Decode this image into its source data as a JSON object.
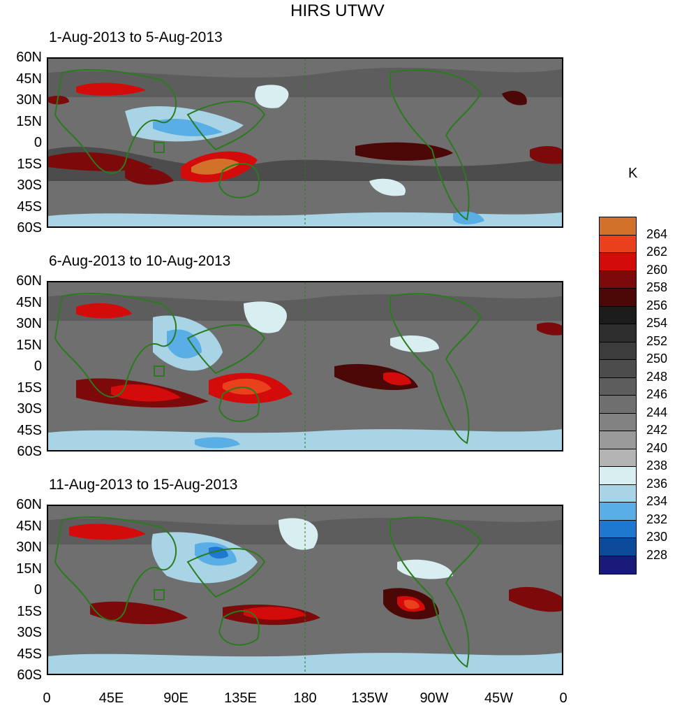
{
  "title": "HIRS UTWV",
  "panels": [
    {
      "subtitle": "1-Aug-2013 to 5-Aug-2013"
    },
    {
      "subtitle": "6-Aug-2013 to 10-Aug-2013"
    },
    {
      "subtitle": "11-Aug-2013 to 15-Aug-2013"
    }
  ],
  "lat_labels": [
    "60N",
    "45N",
    "30N",
    "15N",
    "0",
    "15S",
    "30S",
    "45S",
    "60S"
  ],
  "lon_labels": [
    "0",
    "45E",
    "90E",
    "135E",
    "180",
    "135W",
    "90W",
    "45W",
    "0"
  ],
  "colorbar": {
    "unit": "K",
    "levels": [
      "264",
      "262",
      "260",
      "258",
      "256",
      "254",
      "252",
      "250",
      "248",
      "246",
      "244",
      "242",
      "240",
      "238",
      "236",
      "234",
      "232",
      "230",
      "228"
    ],
    "colors": [
      "#d2722a",
      "#e8411c",
      "#d40b0b",
      "#7d0a0a",
      "#4c0707",
      "#1c1c1c",
      "#2e2e2e",
      "#3c3c3c",
      "#4c4c4c",
      "#5d5d5d",
      "#6f6f6f",
      "#828282",
      "#9a9a9a",
      "#b4b4b4",
      "#d8eef0",
      "#a8d4e6",
      "#5aaee6",
      "#1e78d0",
      "#0c4a9a",
      "#1a1a78"
    ]
  },
  "colors": {
    "coastline": "#2a7a1e"
  }
}
